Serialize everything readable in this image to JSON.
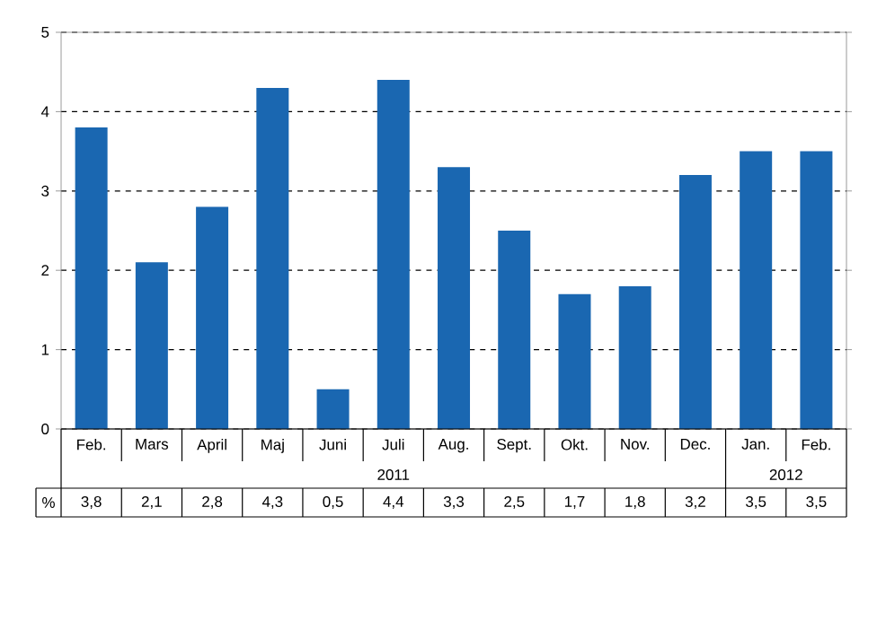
{
  "chart_data": {
    "type": "bar",
    "categories": [
      "Feb.",
      "Mars",
      "April",
      "Maj",
      "Juni",
      "Juli",
      "Aug.",
      "Sept.",
      "Okt.",
      "Nov.",
      "Dec.",
      "Jan.",
      "Feb."
    ],
    "values": [
      3.8,
      2.1,
      2.8,
      4.3,
      0.5,
      4.4,
      3.3,
      2.5,
      1.7,
      1.8,
      3.2,
      3.5,
      3.5
    ],
    "value_labels": [
      "3,8",
      "2,1",
      "2,8",
      "4,3",
      "0,5",
      "4,4",
      "3,3",
      "2,5",
      "1,7",
      "1,8",
      "3,2",
      "3,5",
      "3,5"
    ],
    "color": "#1a67b1",
    "ylim": [
      0,
      5
    ],
    "yticks": [
      0,
      1,
      2,
      3,
      4,
      5
    ],
    "grid": "y",
    "annotations": [
      "2011",
      "2012",
      "%"
    ]
  }
}
